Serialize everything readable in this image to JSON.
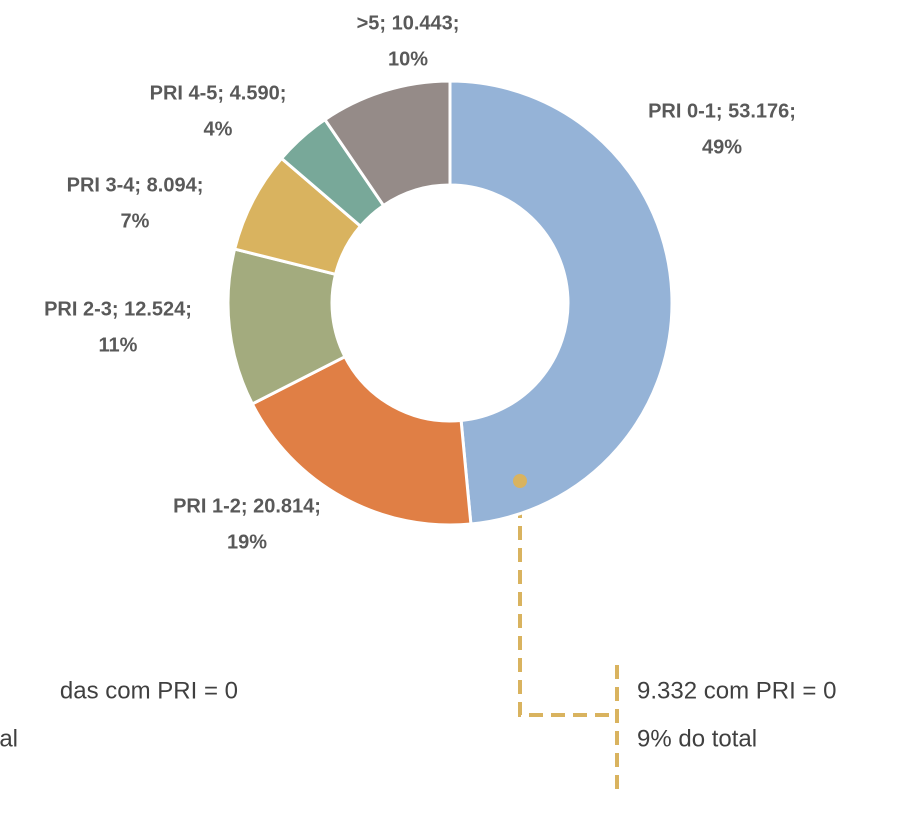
{
  "chart_data": {
    "type": "donut",
    "values": [
      53176,
      20814,
      12524,
      8094,
      4590,
      10443
    ],
    "value_labels": [
      [
        "PRI 0-1; 53.176;",
        "49%"
      ],
      [
        "PRI 1-2; 20.814;",
        "19%"
      ],
      [
        "PRI 2-3; 12.524;",
        "11%"
      ],
      [
        "PRI 3-4; 8.094;",
        "7%"
      ],
      [
        "PRI 4-5; 4.590;",
        "4%"
      ],
      [
        ">5; 10.443;",
        "10%"
      ]
    ],
    "colors": [
      "#95b3d7",
      "#e07f45",
      "#a3ab7e",
      "#d9b35f",
      "#78a899",
      "#958b88"
    ],
    "annotations": [
      [
        "das com PRI = 0",
        "al"
      ],
      [
        "9.332 com PRI = 0",
        "9% do total"
      ]
    ]
  }
}
